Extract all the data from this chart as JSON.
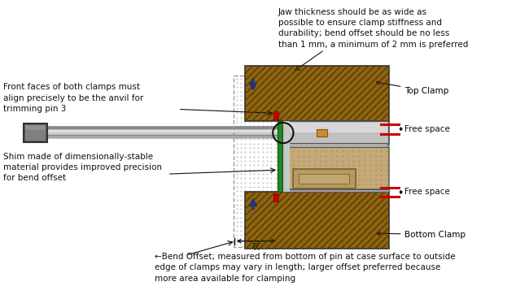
{
  "bg_color": "#ffffff",
  "annotations": {
    "jaw_thickness": "Jaw thickness should be as wide as\npossible to ensure clamp stiffness and\ndurability; bend offset should be no less\nthan 1 mm, a minimum of 2 mm is preferred",
    "front_faces": "Front faces of both clamps must\nalign precisely to be the anvil for\ntrimming pin 3",
    "shim": "Shim made of dimensionally-stable\nmaterial provides improved precision\nfor bend offset",
    "bend_offset": "←Bend Offset; measured from bottom of pin at case surface to outside\nedge of clamps may vary in length; larger offset preferred because\nmore area available for clamping",
    "top_clamp": "Top Clamp",
    "bottom_clamp": "Bottom Clamp",
    "free_space1": "Free space",
    "free_space2": "Free space"
  },
  "colors": {
    "brown_clamp": "#8B6510",
    "device_silver_top": "#c8c8c8",
    "device_silver_mid": "#b0b0b0",
    "device_body": "#c4aa78",
    "device_body_dot": "#a89060",
    "dashed_box": "#999999",
    "blue_arrow": "#1030a0",
    "red_indicator": "#cc0000",
    "green_shim": "#228822",
    "pin_gray": "#b0b0b0",
    "pin_dark": "#707070",
    "pin_head": "#606060",
    "connector_orange": "#cc8833",
    "black": "#111111"
  }
}
